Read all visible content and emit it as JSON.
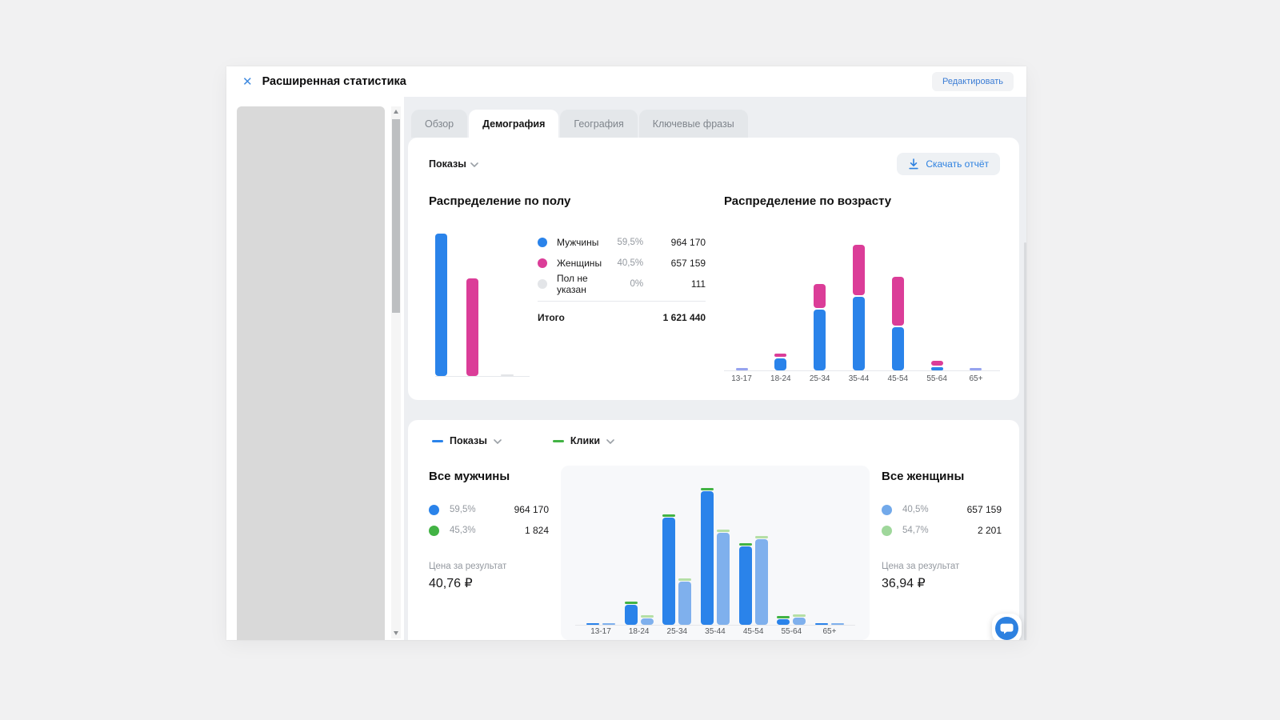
{
  "header": {
    "title": "Расширенная статистика",
    "edit_button": "Редактировать"
  },
  "tabs": [
    {
      "label": "Обзор",
      "active": false
    },
    {
      "label": "Демография",
      "active": true
    },
    {
      "label": "География",
      "active": false
    },
    {
      "label": "Ключевые фразы",
      "active": false
    }
  ],
  "card1": {
    "metric_dropdown": "Показы",
    "download_button": "Скачать отчёт",
    "gender_title": "Распределение по полу",
    "age_title": "Распределение по возрасту",
    "total_label": "Итого",
    "total_value": "1 621 440"
  },
  "card2": {
    "series_legend": [
      {
        "label": "Показы",
        "color": "#2a83ea"
      },
      {
        "label": "Клики",
        "color": "#42b344"
      }
    ],
    "men": {
      "title": "Все мужчины",
      "rows": [
        {
          "color": "#2a83ea",
          "percent": "59,5%",
          "value": "964 170"
        },
        {
          "color": "#42b344",
          "percent": "45,3%",
          "value": "1 824"
        }
      ],
      "price_label": "Цена за результат",
      "price_value": "40,76 ₽"
    },
    "women": {
      "title": "Все женщины",
      "rows": [
        {
          "color": "#72a9ea",
          "percent": "40,5%",
          "value": "657 159"
        },
        {
          "color": "#9fd79b",
          "percent": "54,7%",
          "value": "2 201"
        }
      ],
      "price_label": "Цена за результат",
      "price_value": "36,94 ₽"
    }
  },
  "chart_data": [
    {
      "type": "bar",
      "title": "Распределение по полу",
      "categories": [
        "Мужчины",
        "Женщины",
        "Пол не указан"
      ],
      "values": [
        964170,
        657159,
        111
      ],
      "percents": [
        "59,5%",
        "40,5%",
        "0%"
      ],
      "values_fmt": [
        "964 170",
        "657 159",
        "111"
      ],
      "colors": [
        "#2a83ea",
        "#db3d98",
        "#e3e5e8"
      ],
      "total": 1621440,
      "total_fmt": "1 621 440"
    },
    {
      "type": "bar",
      "stacked": true,
      "title": "Распределение по возрасту",
      "categories": [
        "13-17",
        "18-24",
        "25-34",
        "35-44",
        "45-54",
        "55-64",
        "65+"
      ],
      "series": [
        {
          "name": "Мужчины",
          "color": "#2a83ea",
          "values": [
            8000,
            59000,
            299000,
            362000,
            213000,
            16000,
            8000
          ]
        },
        {
          "name": "Женщины",
          "color": "#db3d98",
          "values": [
            8000,
            16000,
            117000,
            246000,
            238000,
            24000,
            8000
          ]
        }
      ],
      "ylim": [
        0,
        620000
      ],
      "sliver_color": "#96a3ef"
    },
    {
      "type": "bar",
      "grouped": true,
      "title": "Показы по возрасту и полу (клики — зелёные отметки)",
      "categories": [
        "13-17",
        "18-24",
        "25-34",
        "35-44",
        "45-54",
        "55-64",
        "65+"
      ],
      "series": [
        {
          "name": "Мужчины — показы",
          "color": "#2a83ea",
          "cap_color": "#42b344",
          "values": [
            4500,
            56000,
            297000,
            369000,
            217000,
            15600,
            4500
          ]
        },
        {
          "name": "Женщины — показы",
          "color": "#7fb0ed",
          "cap_color": "#b5dfa5",
          "values": [
            4500,
            18000,
            120000,
            253000,
            237000,
            20000,
            4500
          ]
        }
      ],
      "clicks_totals": {
        "men": 1824,
        "women": 2201
      },
      "ylim": [
        0,
        380000
      ]
    }
  ]
}
